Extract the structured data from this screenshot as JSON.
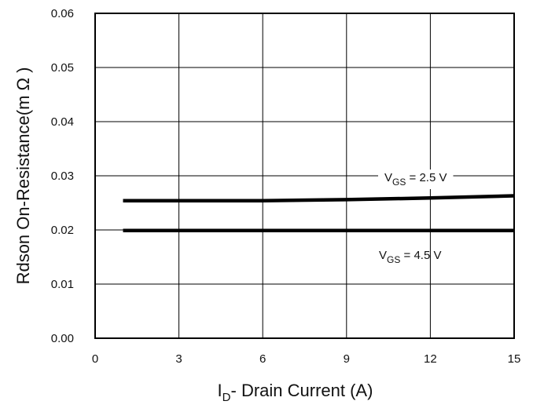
{
  "chart_data": {
    "type": "line",
    "xlabel": {
      "main": "I",
      "sub": "D",
      "rest": "- Drain Current (A)"
    },
    "ylabel": "Rdson On-Resistance(m Ω )",
    "xlim": [
      0,
      15
    ],
    "ylim": [
      0,
      0.06
    ],
    "xticks": [
      "0",
      "3",
      "6",
      "9",
      "12",
      "15"
    ],
    "yticks": [
      "0.00",
      "0.01",
      "0.02",
      "0.03",
      "0.04",
      "0.05",
      "0.06"
    ],
    "grid": true,
    "legend": "none",
    "series": [
      {
        "label": {
          "main": "V",
          "sub": "GS",
          "rest": " = 2.5 V"
        },
        "color": "#000000",
        "x": [
          1,
          3,
          6,
          9,
          12,
          15
        ],
        "y": [
          0.0254,
          0.0254,
          0.0254,
          0.0256,
          0.0259,
          0.0263
        ]
      },
      {
        "label": {
          "main": "V",
          "sub": "GS",
          "rest": " = 4.5 V"
        },
        "color": "#000000",
        "x": [
          1,
          3,
          6,
          9,
          12,
          15
        ],
        "y": [
          0.0199,
          0.0199,
          0.0199,
          0.0199,
          0.0199,
          0.0199
        ]
      }
    ]
  }
}
